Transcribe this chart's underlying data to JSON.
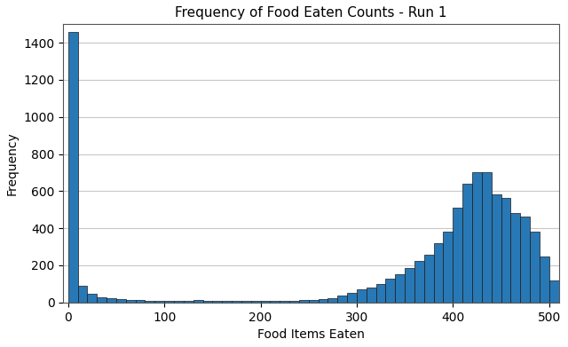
{
  "title": "Frequency of Food Eaten Counts - Run 1",
  "xlabel": "Food Items Eaten",
  "ylabel": "Frequency",
  "bar_color": "#2878b5",
  "edge_color": "#1a1a1a",
  "xlim": [
    -5,
    510
  ],
  "ylim": [
    0,
    1500
  ],
  "bin_width": 10,
  "bin_starts": [
    0,
    10,
    20,
    30,
    40,
    50,
    60,
    70,
    80,
    90,
    100,
    110,
    120,
    130,
    140,
    150,
    160,
    170,
    180,
    190,
    200,
    210,
    220,
    230,
    240,
    250,
    260,
    270,
    280,
    290,
    300,
    310,
    320,
    330,
    340,
    350,
    360,
    370,
    380,
    390,
    400,
    410,
    420,
    430,
    440,
    450,
    460,
    470,
    480,
    490,
    500
  ],
  "frequencies": [
    1460,
    90,
    45,
    30,
    25,
    18,
    15,
    12,
    10,
    8,
    8,
    7,
    10,
    12,
    10,
    8,
    8,
    8,
    8,
    8,
    8,
    8,
    8,
    10,
    12,
    15,
    20,
    25,
    35,
    50,
    70,
    80,
    100,
    130,
    150,
    185,
    225,
    255,
    320,
    380,
    510,
    640,
    700,
    700,
    585,
    565,
    480,
    465,
    380,
    250,
    120
  ],
  "yticks": [
    0,
    200,
    400,
    600,
    800,
    1000,
    1200,
    1400
  ],
  "xticks": [
    0,
    100,
    200,
    300,
    400,
    500
  ],
  "grid_color": "#c8c8c8",
  "background_color": "#ffffff"
}
